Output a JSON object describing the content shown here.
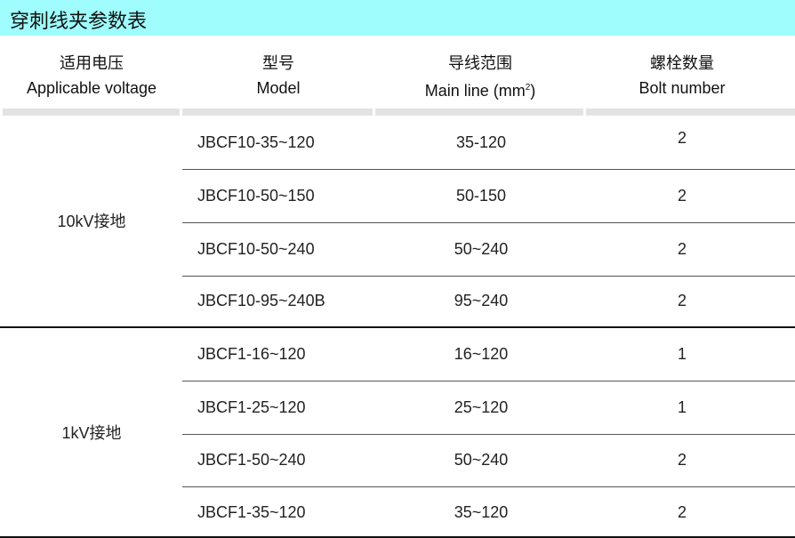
{
  "title": "穿刺线夹参数表",
  "headers": [
    {
      "cn": "适用电压",
      "en": "Applicable voltage"
    },
    {
      "cn": "型号",
      "en": "Model"
    },
    {
      "cn": "导线范围",
      "en": "Main line (mm",
      "sup": "2",
      ")": ")"
    },
    {
      "cn": "螺栓数量",
      "en": "Bolt number"
    }
  ],
  "groups": [
    {
      "voltage": "10kV接地",
      "rows": [
        {
          "model": "JBCF10-35~120",
          "range": "35-120",
          "bolts": "2"
        },
        {
          "model": "JBCF10-50~150",
          "range": "50-150",
          "bolts": "2"
        },
        {
          "model": "JBCF10-50~240",
          "range": "50~240",
          "bolts": "2"
        },
        {
          "model": "JBCF10-95~240B",
          "range": "95~240",
          "bolts": "2"
        }
      ]
    },
    {
      "voltage": "1kV接地",
      "rows": [
        {
          "model": "JBCF1-16~120",
          "range": "16~120",
          "bolts": "1"
        },
        {
          "model": "JBCF1-25~120",
          "range": "25~120",
          "bolts": "1"
        },
        {
          "model": "JBCF1-50~240",
          "range": "50~240",
          "bolts": "2"
        },
        {
          "model": "JBCF1-35~120",
          "range": "35~120",
          "bolts": "2"
        }
      ]
    }
  ]
}
